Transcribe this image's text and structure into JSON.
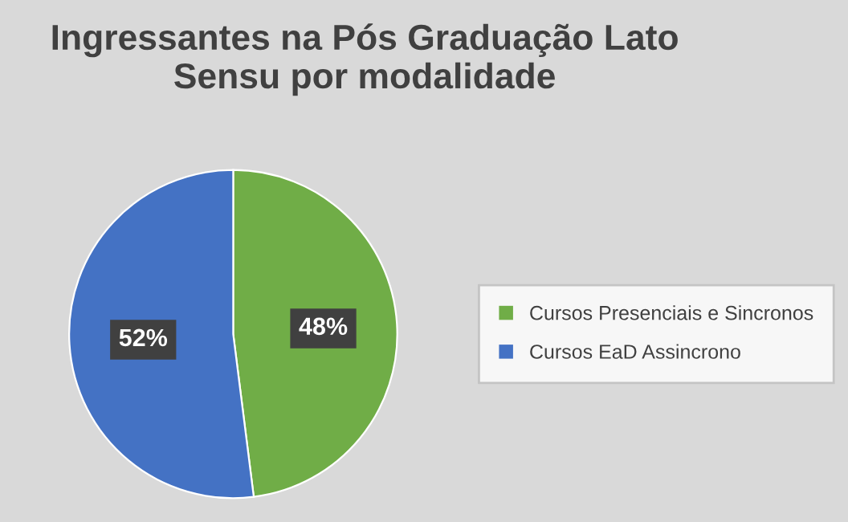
{
  "chart_data": {
    "type": "pie",
    "title": "Ingressantes na Pós Graduação Lato Sensu por modalidade",
    "categories": [
      "Cursos Presenciais e Sincronos",
      "Cursos EaD Assincrono"
    ],
    "values": [
      48,
      52
    ],
    "colors": [
      "#70ad47",
      "#4472c4"
    ],
    "value_labels": [
      "48%",
      "52%"
    ],
    "legend": "right"
  }
}
